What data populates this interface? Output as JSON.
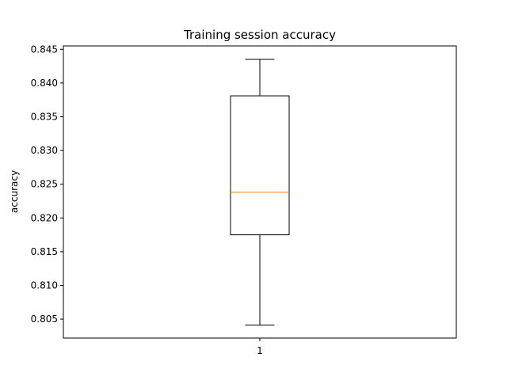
{
  "chart_data": {
    "type": "box",
    "title": "Training session accuracy",
    "xlabel": "",
    "ylabel": "accuracy",
    "categories": [
      "1"
    ],
    "ylim": [
      0.8022,
      0.8455
    ],
    "yticks": [
      {
        "value": 0.805,
        "label": "0.805"
      },
      {
        "value": 0.81,
        "label": "0.810"
      },
      {
        "value": 0.815,
        "label": "0.815"
      },
      {
        "value": 0.82,
        "label": "0.820"
      },
      {
        "value": 0.825,
        "label": "0.825"
      },
      {
        "value": 0.83,
        "label": "0.830"
      },
      {
        "value": 0.835,
        "label": "0.835"
      },
      {
        "value": 0.84,
        "label": "0.840"
      },
      {
        "value": 0.845,
        "label": "0.845"
      }
    ],
    "boxes": [
      {
        "category": "1",
        "whisker_low": 0.8041,
        "q1": 0.8175,
        "median": 0.8238,
        "q3": 0.8381,
        "whisker_high": 0.8435
      }
    ],
    "grid": false,
    "colors": {
      "box": "#000000",
      "median": "#ff7f0e",
      "axes": "#000000"
    }
  }
}
